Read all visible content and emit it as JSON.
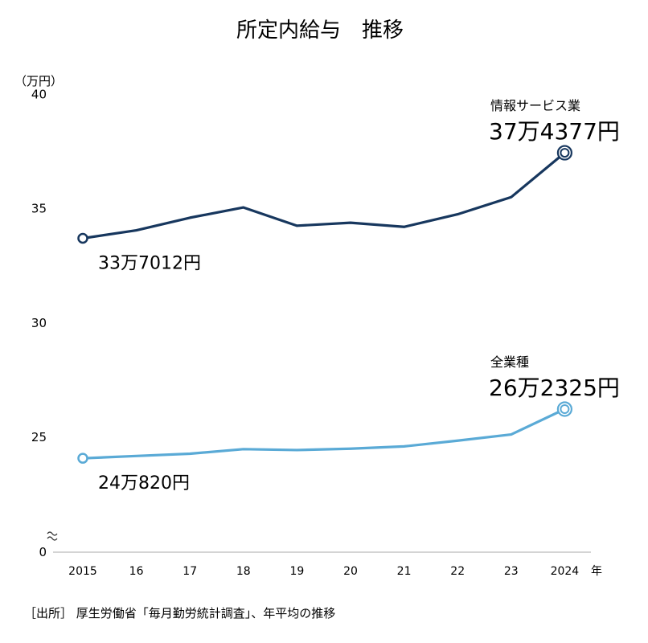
{
  "chart_data": {
    "type": "line",
    "title": "所定内給与　推移",
    "y_unit": "（万円）",
    "x_unit": "年",
    "ylim": [
      0,
      40
    ],
    "yticks": [
      0,
      25,
      30,
      35,
      40
    ],
    "axis_break": true,
    "categories": [
      "2015",
      "16",
      "17",
      "18",
      "19",
      "20",
      "21",
      "22",
      "23",
      "2024"
    ],
    "series": [
      {
        "name": "情報サービス業",
        "color": "#17375e",
        "values": [
          33.7,
          34.05,
          34.6,
          35.05,
          34.25,
          34.38,
          34.2,
          34.75,
          35.5,
          37.44
        ],
        "start_label": "33万7012円",
        "end_label": "37万4377円"
      },
      {
        "name": "全業種",
        "color": "#5aaad6",
        "values": [
          24.08,
          24.18,
          24.28,
          24.48,
          24.44,
          24.5,
          24.6,
          24.85,
          25.12,
          26.23
        ],
        "start_label": "24万820円",
        "end_label": "26万2325円"
      }
    ],
    "source": "［出所］ 厚生労働省「毎月勤労統計調査」、年平均の推移"
  }
}
